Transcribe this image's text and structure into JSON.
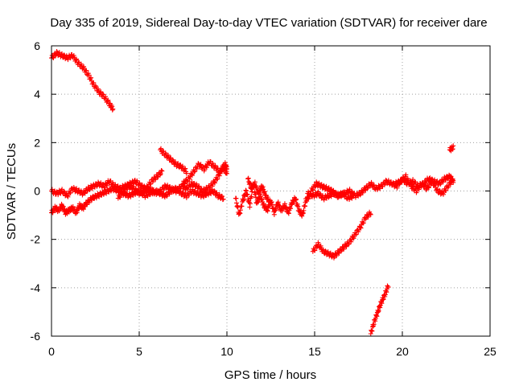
{
  "chart_data": {
    "type": "scatter",
    "title": "Day 335 of 2019, Sidereal Day-to-day VTEC variation (SDTVAR) for receiver dare",
    "xlabel": "GPS time / hours",
    "ylabel": "SDTVAR / TECUs",
    "xlim": [
      0,
      25
    ],
    "ylim": [
      -6,
      6
    ],
    "xticks": [
      0,
      5,
      10,
      15,
      20,
      25
    ],
    "yticks": [
      -6,
      -4,
      -2,
      0,
      2,
      4,
      6
    ],
    "grid": true,
    "marker": "plus",
    "color": "#ff0000",
    "series": [
      {
        "name": "segment-1",
        "x": [
          0,
          0.3,
          0.6,
          0.9,
          1.2,
          1.5,
          1.8,
          2.1,
          2.4,
          2.7,
          3.0,
          3.3,
          3.5
        ],
        "y": [
          5.5,
          5.7,
          5.6,
          5.5,
          5.6,
          5.3,
          5.1,
          4.8,
          4.4,
          4.1,
          3.9,
          3.6,
          3.4
        ]
      },
      {
        "name": "segment-2",
        "x": [
          0,
          0.2,
          0.4,
          0.6,
          0.8,
          1.0,
          1.2,
          1.4,
          1.6,
          1.8,
          2.0,
          2.3,
          2.6,
          2.9,
          3.2,
          3.5,
          3.8,
          4.1,
          4.4,
          4.7,
          5.0,
          5.3,
          5.6,
          5.9,
          6.2,
          6.5,
          6.8,
          7.1,
          7.4,
          7.7,
          8.0,
          8.3,
          8.6,
          8.9,
          9.2,
          9.5,
          9.8
        ],
        "y": [
          -0.9,
          -0.7,
          -0.8,
          -0.6,
          -0.9,
          -0.8,
          -0.7,
          -0.9,
          -0.6,
          -0.7,
          -0.5,
          -0.3,
          -0.2,
          -0.1,
          0.0,
          0.1,
          0.0,
          -0.1,
          -0.2,
          -0.1,
          0.0,
          -0.2,
          -0.1,
          0.0,
          -0.1,
          -0.2,
          0.0,
          0.1,
          -0.1,
          -0.2,
          0.0,
          -0.1,
          -0.2,
          -0.1,
          0.0,
          -0.2,
          -0.3
        ]
      },
      {
        "name": "segment-3",
        "x": [
          0,
          0.3,
          0.6,
          0.9,
          1.2,
          1.5,
          1.8,
          2.1,
          2.4,
          2.7,
          3.0,
          3.3,
          3.6,
          3.9,
          4.2,
          4.5,
          4.8,
          5.1,
          5.4,
          5.7,
          6.0,
          6.3
        ],
        "y": [
          0.0,
          -0.1,
          0.0,
          -0.2,
          0.1,
          0.0,
          -0.1,
          0.1,
          0.2,
          0.3,
          0.2,
          0.4,
          0.2,
          0.1,
          0.2,
          0.3,
          0.4,
          0.2,
          0.1,
          0.4,
          0.6,
          0.8
        ]
      },
      {
        "name": "segment-4",
        "x": [
          6.2,
          6.5,
          6.8,
          7.1,
          7.4,
          7.7
        ],
        "y": [
          1.7,
          1.5,
          1.3,
          1.1,
          1.0,
          0.8
        ]
      },
      {
        "name": "segment-5",
        "x": [
          7.5,
          7.8,
          8.1,
          8.4,
          8.7,
          9.0,
          9.3,
          9.6,
          9.9,
          10.0
        ],
        "y": [
          0.3,
          0.5,
          0.8,
          1.1,
          0.9,
          1.2,
          1.0,
          0.8,
          1.1,
          0.9
        ]
      },
      {
        "name": "segment-6",
        "x": [
          3.8,
          4.1,
          4.4,
          4.7,
          5.0,
          5.3,
          5.6,
          5.9,
          6.2,
          6.5,
          6.8,
          7.1,
          7.4,
          7.7,
          8.0,
          8.3,
          8.6,
          8.9,
          9.2,
          9.5,
          9.8,
          10.0
        ],
        "y": [
          -0.3,
          0.0,
          0.2,
          0.1,
          -0.1,
          0.0,
          0.1,
          -0.1,
          0.0,
          0.2,
          0.1,
          0.0,
          0.2,
          0.1,
          0.3,
          0.2,
          0.0,
          0.1,
          0.3,
          0.6,
          1.0,
          0.7
        ]
      },
      {
        "name": "segment-7",
        "x": [
          10.5,
          10.7,
          10.9,
          11.1,
          11.3,
          11.5,
          11.7,
          11.9,
          12.1,
          12.3,
          12.5,
          12.7,
          12.9,
          13.1,
          13.3,
          13.5,
          13.7,
          13.9,
          14.1,
          14.3,
          14.5,
          14.7
        ],
        "y": [
          -0.3,
          -1.0,
          -0.4,
          0.0,
          -0.6,
          0.3,
          -0.5,
          -0.2,
          -0.6,
          -0.8,
          -0.4,
          -0.9,
          -0.5,
          -0.8,
          -0.6,
          -0.9,
          -0.5,
          -0.3,
          -0.8,
          -1.0,
          -0.4,
          -0.2
        ]
      },
      {
        "name": "segment-8",
        "x": [
          11.2,
          11.4,
          11.6,
          11.8,
          12.0,
          12.2,
          12.4
        ],
        "y": [
          0.5,
          0.1,
          0.3,
          -0.1,
          0.2,
          -0.2,
          -0.4
        ]
      },
      {
        "name": "segment-9",
        "x": [
          14.6,
          14.9,
          15.2,
          15.5,
          15.8,
          16.1,
          16.4,
          16.7,
          17.0,
          17.3,
          17.6,
          17.9,
          18.2,
          18.5,
          18.8,
          19.1,
          19.4,
          19.7,
          20.0,
          20.3,
          20.6,
          20.9,
          21.2,
          21.5,
          21.8,
          22.1,
          22.4,
          22.7,
          22.9
        ],
        "y": [
          -0.1,
          -0.2,
          -0.1,
          -0.3,
          -0.2,
          -0.1,
          -0.2,
          -0.1,
          0.0,
          -0.2,
          -0.1,
          0.1,
          0.3,
          0.1,
          0.2,
          0.4,
          0.3,
          0.2,
          0.5,
          0.3,
          0.4,
          0.2,
          0.3,
          0.5,
          0.4,
          0.3,
          0.5,
          0.6,
          0.4
        ]
      },
      {
        "name": "segment-10",
        "x": [
          14.8,
          15.1,
          15.4,
          15.7,
          16.0,
          16.3,
          16.6,
          16.9,
          17.2
        ],
        "y": [
          0.0,
          0.3,
          0.2,
          0.1,
          0.0,
          -0.2,
          -0.1,
          -0.3,
          -0.2
        ]
      },
      {
        "name": "segment-11",
        "x": [
          19.6,
          19.9,
          20.2,
          20.5,
          20.8,
          21.1,
          21.4,
          21.7,
          22.0,
          22.3,
          22.6,
          22.9
        ],
        "y": [
          0.3,
          0.4,
          0.6,
          0.2,
          0.0,
          0.3,
          0.1,
          0.4,
          0.0,
          -0.1,
          0.2,
          0.5
        ]
      },
      {
        "name": "segment-12",
        "x": [
          22.7,
          22.9
        ],
        "y": [
          1.7,
          1.8
        ]
      },
      {
        "name": "segment-13",
        "x": [
          14.9,
          15.2,
          15.5,
          15.8,
          16.1,
          16.4,
          16.7,
          17.0,
          17.3,
          17.6,
          17.9,
          18.2
        ],
        "y": [
          -2.5,
          -2.2,
          -2.5,
          -2.6,
          -2.7,
          -2.5,
          -2.3,
          -2.1,
          -1.8,
          -1.5,
          -1.1,
          -0.9
        ]
      },
      {
        "name": "segment-14",
        "x": [
          18.2,
          18.4,
          18.6,
          18.8,
          19.0,
          19.2
        ],
        "y": [
          -5.9,
          -5.4,
          -5.0,
          -4.6,
          -4.3,
          -3.9
        ]
      }
    ]
  }
}
